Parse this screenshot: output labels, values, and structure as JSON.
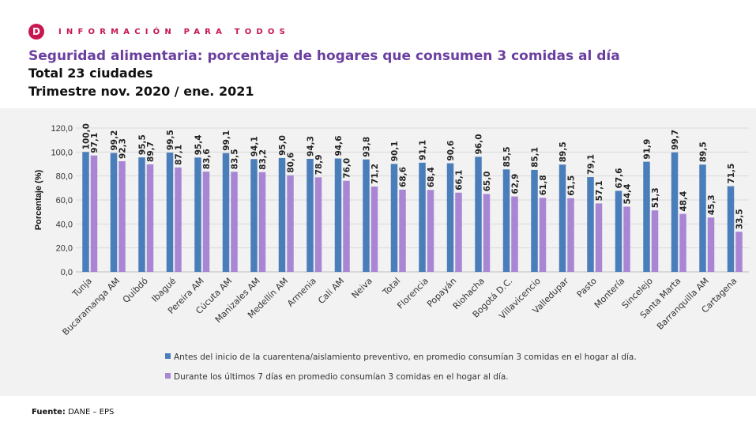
{
  "header": {
    "logo_letter": "D",
    "tagline": "INFORMACIÓN PARA TODOS",
    "title": "Seguridad alimentaria: porcentaje de hogares que consumen 3 comidas al día",
    "subtitle1": "Total 23 ciudades",
    "subtitle2": "Trimestre nov. 2020 / ene. 2021"
  },
  "footer": {
    "source_label": "Fuente:",
    "source_value": "DANE – EPS"
  },
  "colors": {
    "brand": "#c8164f",
    "title": "#6b3fa0",
    "series_before": "#4a7ebb",
    "series_during": "#a986d4"
  },
  "chart_data": {
    "type": "bar",
    "title": "",
    "ylabel": "Porcentaje (%)",
    "xlabel": "",
    "ylim": [
      0,
      120
    ],
    "yticks": [
      "0,0",
      "20,0",
      "40,0",
      "60,0",
      "80,0",
      "100,0",
      "120,0"
    ],
    "grid": true,
    "legend_placement": "bottom",
    "categories": [
      "Tunja",
      "Bucaramanga AM",
      "Quibdó",
      "Ibagué",
      "Pereira AM",
      "Cúcuta AM",
      "Manizales AM",
      "Medellín AM",
      "Armenia",
      "Cali AM",
      "Neiva",
      "Total",
      "Florencia",
      "Popayán",
      "Riohacha",
      "Bogotá D.C.",
      "Villavicencio",
      "Valledupar",
      "Pasto",
      "Montería",
      "Sincelejo",
      "Santa Marta",
      "Barranquilla AM",
      "Cartagena"
    ],
    "series": [
      {
        "name": "Antes del inicio de la cuarentena/aislamiento preventivo, en promedio consumían 3 comidas en el hogar al día.",
        "values": [
          100.0,
          99.2,
          95.5,
          99.5,
          95.4,
          99.1,
          94.1,
          95.0,
          94.3,
          94.6,
          93.8,
          90.1,
          91.1,
          90.6,
          96.0,
          85.5,
          85.1,
          89.5,
          79.1,
          67.6,
          91.9,
          99.7,
          89.5,
          71.5
        ]
      },
      {
        "name": "Durante los últimos 7 días en promedio consumían 3 comidas en el hogar al día.",
        "values": [
          97.1,
          92.3,
          89.7,
          87.1,
          83.6,
          83.5,
          83.2,
          80.6,
          78.9,
          76.0,
          71.2,
          68.6,
          68.4,
          66.1,
          65.0,
          62.9,
          61.8,
          61.5,
          57.1,
          54.4,
          51.3,
          48.4,
          45.3,
          33.5
        ]
      }
    ]
  }
}
